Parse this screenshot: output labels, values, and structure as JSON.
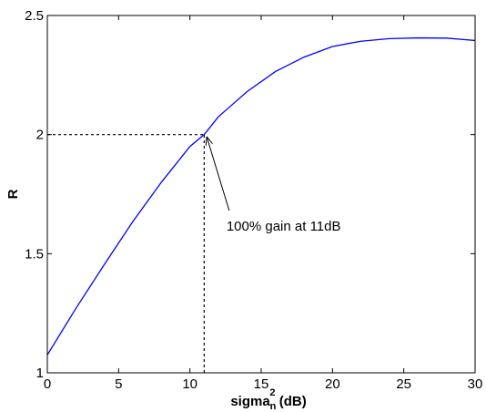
{
  "chart_data": {
    "type": "line",
    "title": "",
    "xlabel": {
      "base": "sigma",
      "subscript": "n",
      "superscript": "2",
      "unit": " (dB)"
    },
    "ylabel": "R",
    "xlim": [
      0,
      30
    ],
    "ylim": [
      1,
      2.5
    ],
    "xticks": [
      0,
      5,
      10,
      15,
      20,
      25,
      30
    ],
    "yticks": [
      1,
      1.5,
      2,
      2.5
    ],
    "ytick_labels": [
      "1",
      "1.5",
      "2",
      "2.5"
    ],
    "grid": false,
    "series": [
      {
        "color": "#0000ff",
        "x": [
          0,
          2,
          4,
          6,
          8,
          10,
          11,
          12,
          14,
          16,
          18,
          20,
          22,
          24,
          26,
          28,
          30
        ],
        "y": [
          1.075,
          1.27,
          1.455,
          1.635,
          1.8,
          1.95,
          2.0,
          2.075,
          2.18,
          2.265,
          2.325,
          2.37,
          2.392,
          2.403,
          2.406,
          2.405,
          2.395
        ]
      }
    ],
    "annotation": {
      "text": "100% gain at 11dB",
      "point": [
        11,
        2.0
      ],
      "text_position": [
        12.5,
        1.62
      ]
    },
    "reference_lines": [
      {
        "x": [
          0,
          11
        ],
        "y": [
          2.0,
          2.0
        ]
      },
      {
        "x": [
          11,
          11
        ],
        "y": [
          1.0,
          2.0
        ]
      }
    ]
  }
}
